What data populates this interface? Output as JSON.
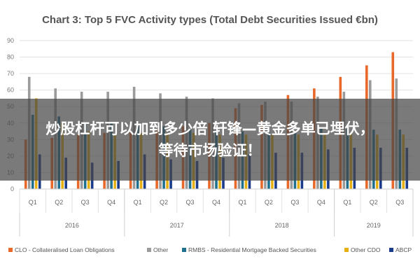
{
  "chart_data": {
    "type": "bar",
    "title": "Chart 3: Top 5 FVC Activity types (Total Debt Securities Issued €bn)",
    "categories": [
      "Q1",
      "Q2",
      "Q3",
      "Q4",
      "Q1",
      "Q2",
      "Q3",
      "Q4",
      "Q1",
      "Q2",
      "Q3",
      "Q4",
      "Q1",
      "Q2",
      "Q3"
    ],
    "years": [
      {
        "label": "2016",
        "count": 4
      },
      {
        "label": "2017",
        "count": 4
      },
      {
        "label": "2018",
        "count": 4
      },
      {
        "label": "2019",
        "count": 3
      }
    ],
    "ylim": [
      0,
      90
    ],
    "yticks": [
      0,
      10,
      20,
      30,
      40,
      50,
      60,
      70,
      80,
      90
    ],
    "grid": true,
    "legend_position": "bottom",
    "series": [
      {
        "name": "CLO - Collateralised Loan Obligations",
        "color": "#e8692a",
        "values": [
          30,
          31,
          33,
          34,
          35,
          36,
          38,
          40,
          49,
          51,
          57,
          61,
          68,
          75,
          83
        ]
      },
      {
        "name": "Other",
        "color": "#9b9b9b",
        "values": [
          68,
          61,
          59,
          59,
          62,
          58,
          56,
          55,
          52,
          53,
          53,
          56,
          59,
          66,
          67
        ]
      },
      {
        "name": "RMBS - Residential Mortgage Backed Securities",
        "color": "#1f6f8f",
        "values": [
          45,
          44,
          40,
          40,
          38,
          38,
          36,
          36,
          35,
          35,
          35,
          37,
          37,
          36,
          36
        ]
      },
      {
        "name": "Other CDO",
        "color": "#e6b012",
        "values": [
          55,
          40,
          35,
          33,
          34,
          34,
          34,
          33,
          33,
          33,
          33,
          33,
          34,
          33,
          33
        ]
      },
      {
        "name": "ABCP",
        "color": "#1b3c8a",
        "values": [
          21,
          19,
          16,
          17,
          21,
          18,
          17,
          19,
          21,
          22,
          22,
          24,
          25,
          25,
          25
        ]
      }
    ]
  },
  "overlay": {
    "line1": "炒股杠杆可以加到多少倍 轩锋—黄金多单已埋伏，",
    "line2": "等待市场验证！"
  }
}
